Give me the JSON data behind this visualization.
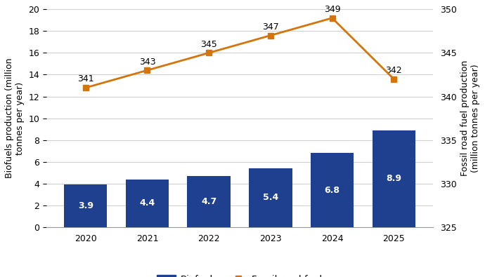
{
  "years": [
    2020,
    2021,
    2022,
    2023,
    2024,
    2025
  ],
  "biofuels": [
    3.9,
    4.4,
    4.7,
    5.4,
    6.8,
    8.9
  ],
  "fossil": [
    341,
    343,
    345,
    347,
    349,
    342
  ],
  "bar_color": "#1F3F8F",
  "line_color": "#D4740A",
  "line_marker": "s",
  "ylabel_left": "Biofuels production (million\ntonnes per year)",
  "ylabel_right": "Fossil road fuel production\n(million tonnes per year)",
  "ylim_left": [
    0,
    20
  ],
  "ylim_right": [
    325,
    350
  ],
  "yticks_left": [
    0,
    2,
    4,
    6,
    8,
    10,
    12,
    14,
    16,
    18,
    20
  ],
  "yticks_right": [
    325,
    330,
    335,
    340,
    345,
    350
  ],
  "legend_labels": [
    "Biofuels",
    "Fossil road fuel"
  ],
  "background_color": "#ffffff",
  "grid_color": "#d0d0d0",
  "figsize": [
    6.9,
    3.95
  ],
  "dpi": 100
}
